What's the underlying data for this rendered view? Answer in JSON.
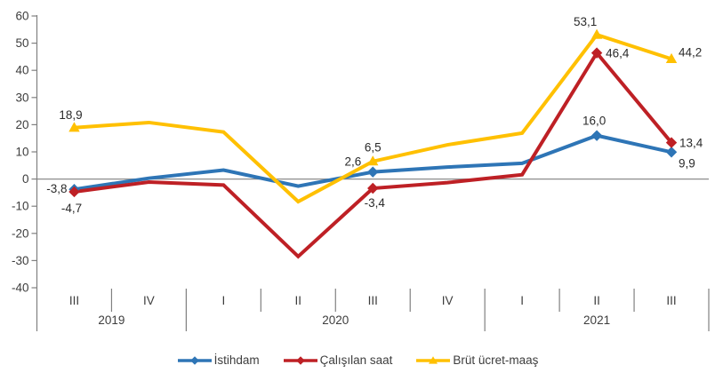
{
  "chart_data": {
    "type": "line",
    "title": "",
    "quarters": [
      "III",
      "IV",
      "I",
      "II",
      "III",
      "IV",
      "I",
      "II",
      "III"
    ],
    "year_groups": [
      {
        "label": "2019",
        "count": 2
      },
      {
        "label": "2020",
        "count": 4
      },
      {
        "label": "2021",
        "count": 3
      }
    ],
    "ylim": [
      -40,
      60
    ],
    "y_tick_step": 10,
    "y_tick_labels": [
      "60",
      "50",
      "40",
      "30",
      "20",
      "10",
      "0",
      "-10",
      "-20",
      "-30",
      "-40"
    ],
    "grid": "zero-line-only",
    "legend_position": "bottom",
    "decimal_separator": ",",
    "series": [
      {
        "name": "İstihdam",
        "color": "#2e75b6",
        "marker": "diamond",
        "values": [
          -3.8,
          0.3,
          3.3,
          -2.6,
          2.6,
          4.4,
          5.8,
          16.0,
          9.9
        ],
        "labeled_points": [
          0,
          4,
          7,
          8
        ],
        "shown_labels": [
          "-3,8",
          "2,6",
          "16,0",
          "9,9"
        ]
      },
      {
        "name": "Çalışılan saat",
        "color": "#be2025",
        "marker": "diamond",
        "values": [
          -4.7,
          -1.1,
          -2.2,
          -28.5,
          -3.4,
          -1.3,
          1.6,
          46.4,
          13.4
        ],
        "labeled_points": [
          0,
          4,
          7,
          8
        ],
        "shown_labels": [
          "-4,7",
          "-3,4",
          "46,4",
          "13,4"
        ]
      },
      {
        "name": "Brüt ücret-maaş",
        "color": "#ffc000",
        "marker": "triangle",
        "values": [
          18.9,
          20.8,
          17.3,
          -8.3,
          6.5,
          12.6,
          16.9,
          53.1,
          44.2
        ],
        "labeled_points": [
          0,
          4,
          7,
          8
        ],
        "shown_labels": [
          "18,9",
          "6,5",
          "53,1",
          "44,2"
        ]
      }
    ],
    "colors": {
      "axis": "#808080",
      "zero_line": "#8c8c8c",
      "axis_text": "#3d3d3d",
      "data_label_text": "#2b2b2b"
    }
  }
}
